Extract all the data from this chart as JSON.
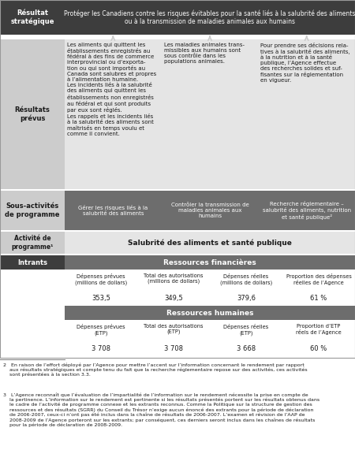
{
  "title_left": "Résultat\nstratégique",
  "title_right": "Protéger les Canadiens contre les risques évitables pour la santé liés à la salubrité des aliments\nou à la transmission de maladies animales aux humains",
  "resultats_label": "Résultats\nprévus",
  "col1_text": "Les aliments qui quittent les\nétablissements enregistrés au\nfédéral à des fins de commerce\ninterprovincial ou d’exporta-\ntion ou qui sont importés au\nCanada sont salubres et propres\nà l’alimentation humaine.\nLes incidents liés à la salubrité\ndes aliments qui quittent les\nétablissements non enregistrés\nau fédéral et qui sont produits\npar eux sont réglés.\nLes rappels et les incidents liés\nà la salubrité des aliments sont\nmaîtrisés en temps voulu et\ncomme il convient.",
  "col2_text": "Les maladies animales trans-\nmissibles aux humains sont\nsous contrôle dans les\npopulations animales.",
  "col3_text": "Pour prendre ses décisions rela-\ntives à la salubrité des aliments,\nà la nutrition et à la santé\npublique, l’Agence effectue\ndes recherches solides et suf-\nfisantes sur la réglementation\nen vigueur.",
  "sous_label": "Sous-activités\nde programme",
  "sub1": "Gérer les risques liés à la\nsalubrité des aliments",
  "sub2": "Contrôler la transmission de\nmaladies animales aux\nhumains",
  "sub3": "Recherche réglementaire –\nsalubrité des aliments, nutrition\net santé publique²",
  "activite_label": "Activité de\nprogramme¹",
  "activite_text": "Salubrité des aliments et santé publique",
  "intrants_label": "Intrants",
  "fin_header": "Ressources financières",
  "fin_col1_label": "Dépenses prévues\n(millions de dollars)",
  "fin_col1_val": "353,5",
  "fin_col2_label": "Total des autorisations\n(millions de dollars)",
  "fin_col2_val": "349,5",
  "fin_col3_label": "Dépenses réelles\n(millions de dollars)",
  "fin_col3_val": "379,6",
  "fin_col4_label": "Proportion des dépenses\nréelles de l’Agence",
  "fin_col4_val": "61 %",
  "hum_header": "Ressources humaines",
  "hum_col1_label": "Dépenses prévues\n(ETP)",
  "hum_col1_val": "3 708",
  "hum_col2_label": "Total des autorisations\n(ETP)",
  "hum_col2_val": "3 708",
  "hum_col3_label": "Dépenses réelles\n(ETP)",
  "hum_col3_val": "3 668",
  "hum_col4_label": "Proportion d’ETP\nréels de l’Agence",
  "hum_col4_val": "60 %",
  "footnote2": "2   En raison de l’effort déployé par l’Agence pour mettre l’accent sur l’information concernant le rendement par rapport\n    aux résultats stratégiques et compte tenu du fait que la recherche réglementaire repose sur des activités, ces activités\n    sont présentées à la section 3.3.",
  "footnote3": "3   L’Agence reconnaît que l’évaluation de l’impartialité de l’information sur le rendement nécessite la prise en compte de\n    la pertinence. L’information sur le rendement est pertinente si les résultats présentés portent sur les résultats obtenus dans\n    le cadre de l’activité de programme connexe et les extrants reconnus. Comme la Politique sur la structure de gestion des\n    ressources et des résultats (SGRR) du Conseil du Trésor n’exige aucun énoncé des extrants pour la période de déclaration\n    de 2006-2007, ceux-ci n’ont pas été inclus dans la chaîne de résultats de 2006-2007. L’examen et révision de l’AAP de\n    2008-2009 de l’Agence porteront sur les extrants; par conséquent, ces derniers seront inclus dans les chaînes de résultats\n    pour la période de déclaration de 2008-2009.",
  "color_dark": "#3d3d3d",
  "color_medium": "#6d6d6d",
  "color_light": "#cccccc",
  "color_lighter": "#e5e5e5",
  "color_white": "#ffffff",
  "color_black": "#1a1a1a",
  "color_border": "#999999"
}
